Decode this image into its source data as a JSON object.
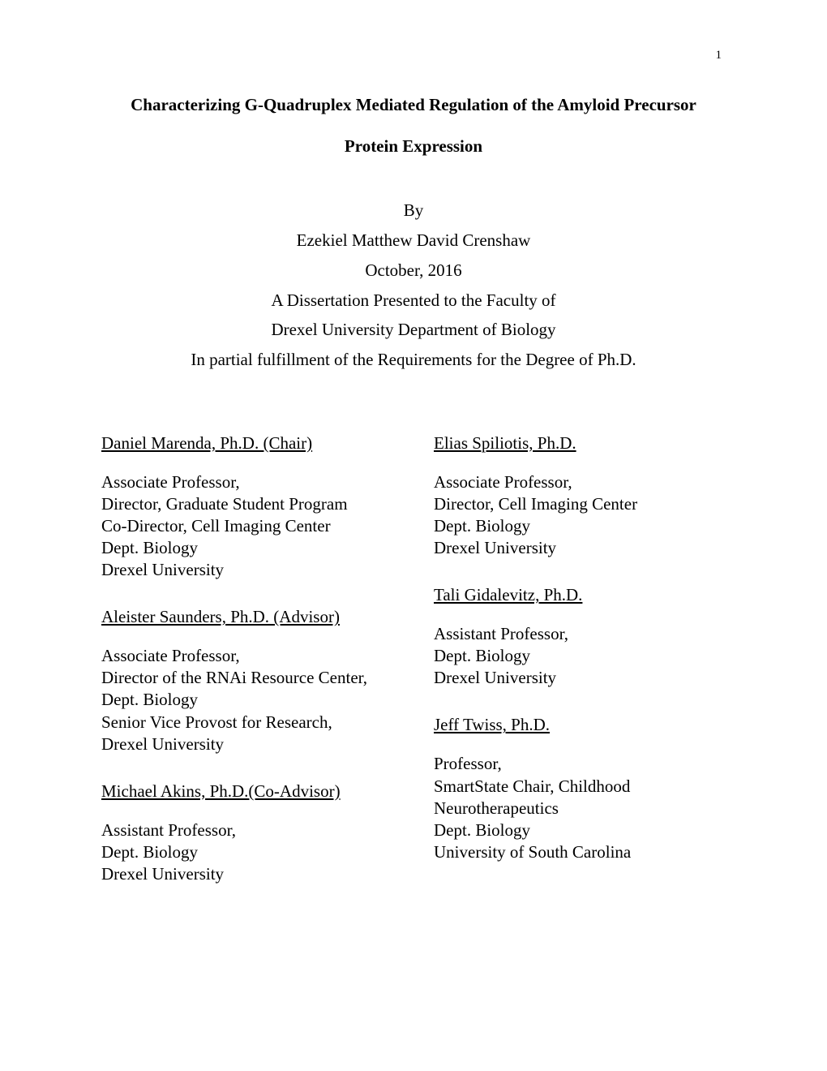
{
  "page_number": "1",
  "title": {
    "line1": "Characterizing G-Quadruplex Mediated Regulation of the Amyloid Precursor",
    "line2": "Protein Expression"
  },
  "info": {
    "by": "By",
    "author": "Ezekiel Matthew David Crenshaw",
    "date": "October, 2016",
    "presented": "A Dissertation Presented to the Faculty of",
    "department": "Drexel University Department of Biology",
    "fulfillment": "In partial fulfillment of the Requirements for the Degree of Ph.D."
  },
  "committee": {
    "left": [
      {
        "name": "Daniel Marenda, Ph.D. (Chair)",
        "lines": [
          "Associate Professor,",
          "Director, Graduate Student Program",
          "Co-Director, Cell Imaging Center",
          "Dept. Biology",
          "Drexel University"
        ]
      },
      {
        "name": "Aleister Saunders, Ph.D. (Advisor)",
        "lines": [
          "Associate Professor,",
          "Director of the RNAi Resource Center,",
          "Dept. Biology",
          "Senior Vice Provost for Research,",
          "Drexel University"
        ]
      },
      {
        "name": "Michael Akins, Ph.D.(Co-Advisor)",
        "lines": [
          "Assistant Professor,",
          "Dept. Biology",
          "Drexel University"
        ]
      }
    ],
    "right": [
      {
        "name": "Elias Spiliotis, Ph.D.",
        "lines": [
          "Associate Professor,",
          "Director, Cell Imaging Center",
          "Dept. Biology",
          "Drexel University"
        ]
      },
      {
        "name": "Tali Gidalevitz, Ph.D.",
        "lines": [
          "Assistant Professor,",
          "Dept. Biology",
          "Drexel University"
        ]
      },
      {
        "name": "Jeff Twiss, Ph.D.",
        "lines": [
          "Professor,",
          "SmartState Chair, Childhood",
          "Neurotherapeutics",
          "Dept. Biology",
          "University of South Carolina"
        ]
      }
    ]
  },
  "styles": {
    "page_bg": "#ffffff",
    "text_color": "#000000",
    "title_fontsize_pt": 16,
    "body_fontsize_pt": 16,
    "font_family": "Times New Roman"
  }
}
